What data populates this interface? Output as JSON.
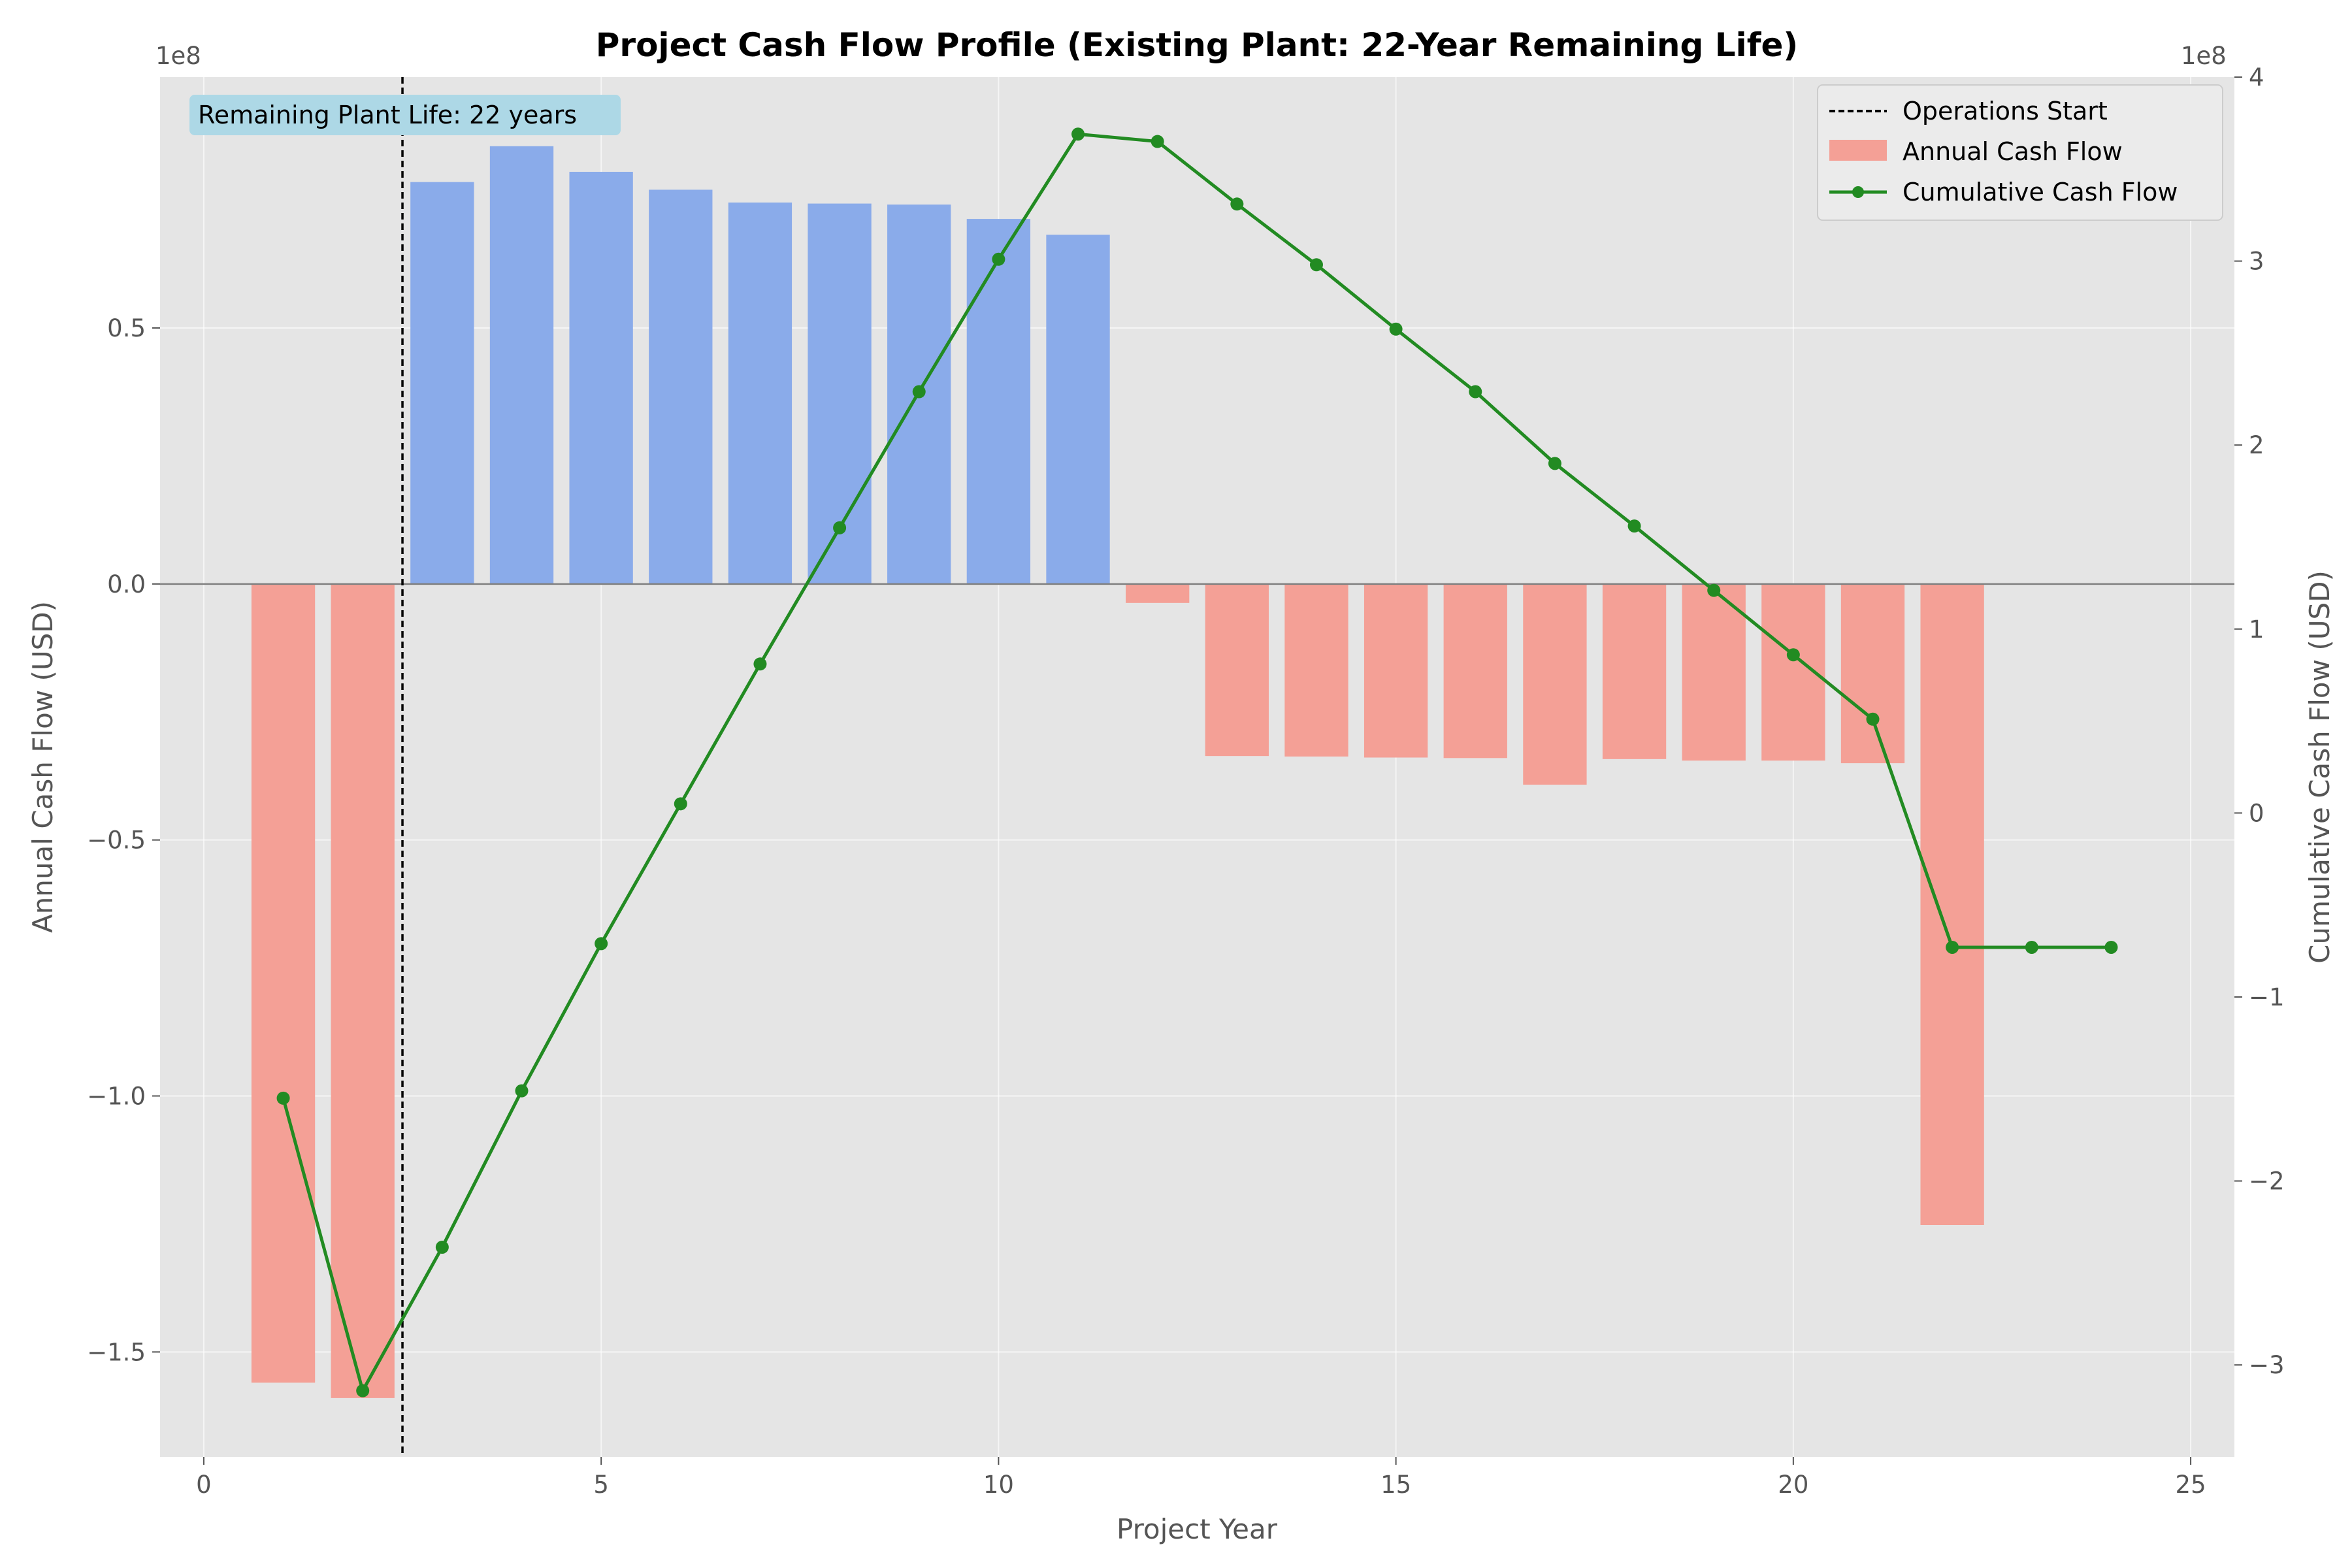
{
  "chart_data": {
    "type": "bar",
    "title": "Project Cash Flow Profile (Existing Plant: 22-Year Remaining Life)",
    "xlabel": "Project Year",
    "ylabel_left": "Annual Cash Flow (USD)",
    "ylabel_right": "Cumulative Cash Flow (USD)",
    "y_offset_left": "1e8",
    "y_offset_right": "1e8",
    "xlim": [
      -0.55,
      25.55
    ],
    "ylim_left": [
      -1.705,
      0.99
    ],
    "ylim_right": [
      -3.5,
      4.0
    ],
    "x_ticks": [
      0,
      5,
      10,
      15,
      20,
      25
    ],
    "x_tick_labels": [
      "0",
      "5",
      "10",
      "15",
      "20",
      "25"
    ],
    "y_ticks_left": [
      -1.5,
      -1.0,
      -0.5,
      0.0,
      0.5
    ],
    "y_tick_labels_left": [
      "−1.5",
      "−1.0",
      "−0.5",
      "0.0",
      "0.5"
    ],
    "y_ticks_right": [
      -3,
      -2,
      -1,
      0,
      1,
      2,
      3,
      4
    ],
    "y_tick_labels_right": [
      "−3",
      "−2",
      "−1",
      "0",
      "1",
      "2",
      "3",
      "4"
    ],
    "grid": true,
    "legend_position": "top-right",
    "operations_start_x": 2.5,
    "annotation": "Remaining Plant Life: 22 years",
    "series": [
      {
        "name": "Annual Cash Flow",
        "kind": "bar",
        "x": [
          1,
          2,
          3,
          4,
          5,
          6,
          7,
          8,
          9,
          10,
          11,
          12,
          13,
          14,
          15,
          16,
          17,
          18,
          19,
          20,
          21,
          22
        ],
        "values": [
          -1.56,
          -1.59,
          0.785,
          0.855,
          0.805,
          0.77,
          0.745,
          0.743,
          0.741,
          0.713,
          0.682,
          -0.037,
          -0.336,
          -0.337,
          -0.339,
          -0.34,
          -0.392,
          -0.342,
          -0.345,
          -0.345,
          -0.35,
          -1.252
        ]
      },
      {
        "name": "Cumulative Cash Flow",
        "kind": "line",
        "x": [
          1,
          2,
          3,
          4,
          5,
          6,
          7,
          8,
          9,
          10,
          11,
          12,
          13,
          14,
          15,
          16,
          17,
          18,
          19,
          20,
          21,
          22,
          23,
          24
        ],
        "values": [
          -1.55,
          -3.14,
          -2.36,
          -1.51,
          -0.71,
          0.05,
          0.81,
          1.55,
          2.29,
          3.01,
          3.69,
          3.65,
          3.31,
          2.98,
          2.63,
          2.29,
          1.9,
          1.56,
          1.21,
          0.86,
          0.51,
          -0.73,
          -0.73,
          -0.73
        ]
      },
      {
        "name": "Operations Start",
        "kind": "vline"
      }
    ],
    "colors": {
      "positive_bar": "#8aabea",
      "negative_bar": "#f4a096",
      "line": "#228b22",
      "plot_bg": "#e5e5e5",
      "zero_line": "#808080",
      "vline": "#000000",
      "annotation_bg": "#add8e6"
    }
  }
}
